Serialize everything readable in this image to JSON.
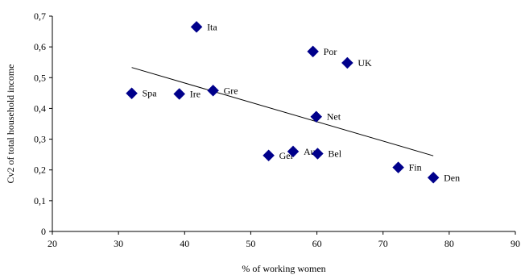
{
  "chart_data": {
    "type": "scatter",
    "title": "",
    "xlabel": "% of working women",
    "ylabel": "Cv2 of total household income",
    "xlim": [
      20,
      90
    ],
    "ylim": [
      0,
      0.7
    ],
    "xticks": [
      "20",
      "30",
      "40",
      "50",
      "60",
      "70",
      "80",
      "90"
    ],
    "yticks": [
      "0",
      "0,1",
      "0,2",
      "0,3",
      "0,4",
      "0,5",
      "0,6",
      "0,7"
    ],
    "grid": false,
    "legend": "none",
    "marker_color": "#00008B",
    "points": [
      {
        "label": "Ita",
        "x": 41.8,
        "y": 0.665
      },
      {
        "label": "Por",
        "x": 59.4,
        "y": 0.585
      },
      {
        "label": "UK",
        "x": 64.6,
        "y": 0.548
      },
      {
        "label": "Spa",
        "x": 32.0,
        "y": 0.449
      },
      {
        "label": "Ire",
        "x": 39.2,
        "y": 0.447
      },
      {
        "label": "Gre",
        "x": 44.3,
        "y": 0.458
      },
      {
        "label": "Net",
        "x": 59.9,
        "y": 0.373
      },
      {
        "label": "Ger",
        "x": 52.7,
        "y": 0.247
      },
      {
        "label": "Aus",
        "x": 56.4,
        "y": 0.26
      },
      {
        "label": "Bel",
        "x": 60.1,
        "y": 0.253
      },
      {
        "label": "Fin",
        "x": 72.3,
        "y": 0.208
      },
      {
        "label": "Den",
        "x": 77.6,
        "y": 0.175
      }
    ],
    "trendline": {
      "x": [
        32.0,
        77.6
      ],
      "y": [
        0.533,
        0.246
      ]
    }
  }
}
